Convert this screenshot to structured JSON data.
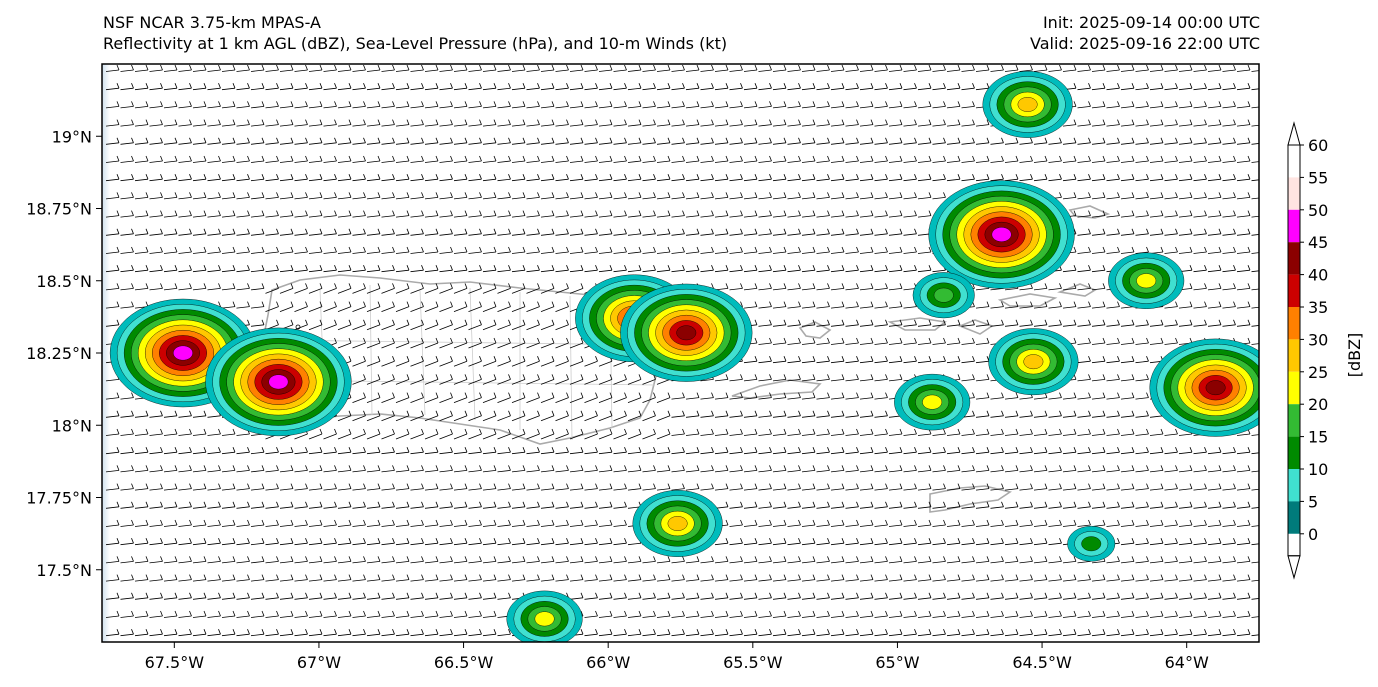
{
  "title": {
    "model": "NSF NCAR 3.75-km MPAS-A",
    "fields": "Reflectivity at 1 km AGL (dBZ), Sea-Level Pressure (hPa), and 10-m Winds (kt)",
    "init": "Init: 2025-09-14 00:00 UTC",
    "valid": "Valid: 2025-09-16 22:00 UTC"
  },
  "map": {
    "lon_range": [
      -67.75,
      -63.75
    ],
    "lat_range": [
      17.25,
      19.25
    ],
    "lat_ticks": [
      {
        "value": 19.0,
        "label": "19°N"
      },
      {
        "value": 18.75,
        "label": "18.75°N"
      },
      {
        "value": 18.5,
        "label": "18.5°N"
      },
      {
        "value": 18.25,
        "label": "18.25°N"
      },
      {
        "value": 18.0,
        "label": "18°N"
      },
      {
        "value": 17.75,
        "label": "17.75°N"
      },
      {
        "value": 17.5,
        "label": "17.5°N"
      }
    ],
    "lon_ticks": [
      {
        "value": -67.5,
        "label": "67.5°W"
      },
      {
        "value": -67.0,
        "label": "67°W"
      },
      {
        "value": -66.5,
        "label": "66.5°W"
      },
      {
        "value": -66.0,
        "label": "66°W"
      },
      {
        "value": -65.5,
        "label": "65.5°W"
      },
      {
        "value": -65.0,
        "label": "65°W"
      },
      {
        "value": -64.5,
        "label": "64.5°W"
      },
      {
        "value": -64.0,
        "label": "64°W"
      }
    ],
    "storm_cells": [
      {
        "lon": -67.47,
        "lat": 18.25,
        "peak_dbz": 45
      },
      {
        "lon": -67.14,
        "lat": 18.15,
        "peak_dbz": 45
      },
      {
        "lon": -65.91,
        "lat": 18.37,
        "peak_dbz": 35
      },
      {
        "lon": -65.73,
        "lat": 18.32,
        "peak_dbz": 40
      },
      {
        "lon": -64.64,
        "lat": 18.66,
        "peak_dbz": 45
      },
      {
        "lon": -64.55,
        "lat": 19.11,
        "peak_dbz": 25
      },
      {
        "lon": -64.14,
        "lat": 18.5,
        "peak_dbz": 20
      },
      {
        "lon": -64.84,
        "lat": 18.45,
        "peak_dbz": 15
      },
      {
        "lon": -64.53,
        "lat": 18.22,
        "peak_dbz": 25
      },
      {
        "lon": -64.88,
        "lat": 18.08,
        "peak_dbz": 20
      },
      {
        "lon": -63.9,
        "lat": 18.13,
        "peak_dbz": 40
      },
      {
        "lon": -65.76,
        "lat": 17.66,
        "peak_dbz": 25
      },
      {
        "lon": -66.22,
        "lat": 17.33,
        "peak_dbz": 20
      },
      {
        "lon": -64.33,
        "lat": 17.59,
        "peak_dbz": 10
      }
    ]
  },
  "colorbar": {
    "label": "[dBZ]",
    "levels": [
      {
        "value": "0",
        "color": "#007b7b"
      },
      {
        "value": "5",
        "color": "#00bcbc"
      },
      {
        "value": "10",
        "color": "#40e0d0"
      },
      {
        "value": "15",
        "color": "#008a00"
      },
      {
        "value": "20",
        "color": "#33bb33"
      },
      {
        "value": "25",
        "color": "#ffff00"
      },
      {
        "value": "30",
        "color": "#ffc800"
      },
      {
        "value": "35",
        "color": "#ff8000"
      },
      {
        "value": "40",
        "color": "#cc0000"
      },
      {
        "value": "45",
        "color": "#8b0000"
      },
      {
        "value": "50",
        "color": "#ff00ff"
      },
      {
        "value": "55",
        "color": "#ffe4e1"
      },
      {
        "value": "60",
        "color": "#ffffff"
      }
    ]
  }
}
